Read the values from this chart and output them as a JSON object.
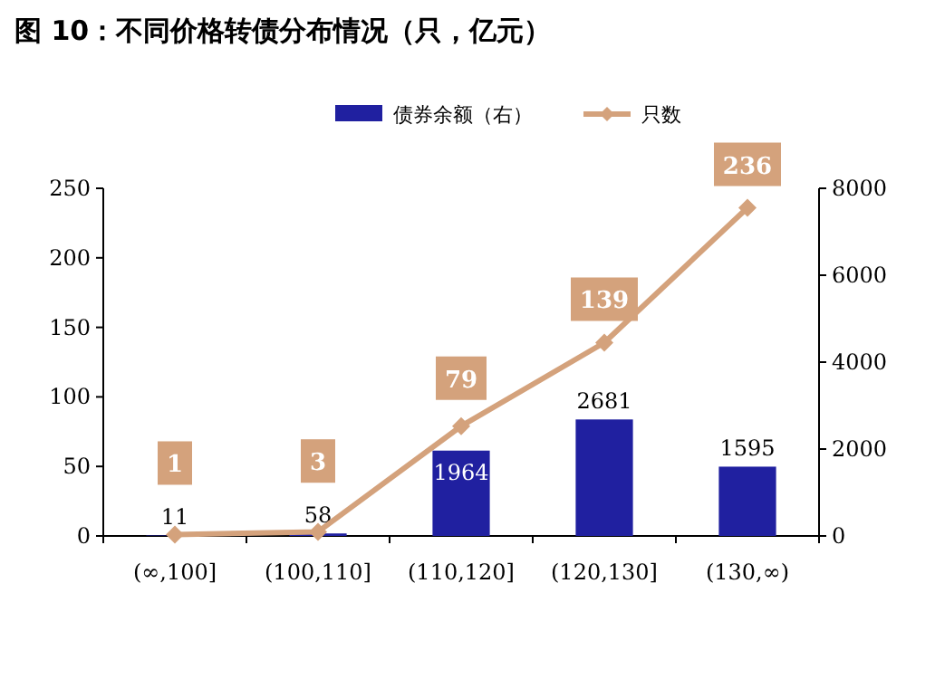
{
  "chart_data": {
    "type": "bar",
    "title": "图 10：不同价格转债分布情况（只，亿元）",
    "categories": [
      "(∞,100]",
      "(100,110]",
      "(110,120]",
      "(120,130]",
      "(130,∞)"
    ],
    "series": [
      {
        "name": "债券余额（右）",
        "axis": "y2",
        "color": "#2020a0",
        "values": [
          11,
          58,
          1964,
          2681,
          1595
        ]
      },
      {
        "name": "只数",
        "type": "line",
        "color": "#d4a27c",
        "marker": "diamond",
        "values": [
          1,
          3,
          79,
          139,
          236
        ]
      }
    ],
    "ylim": [
      0,
      250
    ],
    "yticks": [
      0,
      50,
      100,
      150,
      200,
      250
    ],
    "y2lim": [
      0,
      8000
    ],
    "y2ticks": [
      0,
      2000,
      4000,
      6000,
      8000
    ],
    "data_labels": true,
    "legend": "top",
    "grid": false
  }
}
